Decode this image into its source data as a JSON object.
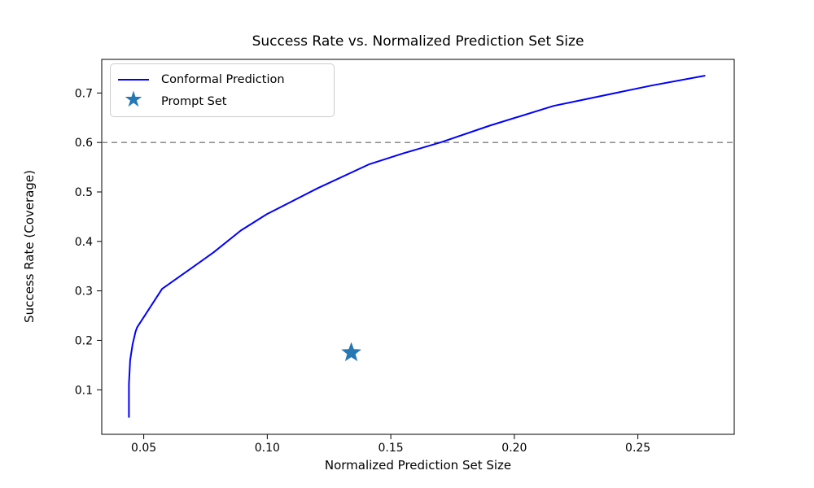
{
  "chart_data": {
    "type": "line",
    "title": "Success Rate vs. Normalized Prediction Set Size",
    "xlabel": "Normalized Prediction Set Size",
    "ylabel": "Success Rate (Coverage)",
    "xlim": [
      0.033,
      0.289
    ],
    "ylim": [
      0.01,
      0.768
    ],
    "grid": false,
    "background": "#ffffff",
    "xticks": {
      "values": [
        0.05,
        0.1,
        0.15,
        0.2,
        0.25
      ],
      "labels": [
        "0.05",
        "0.10",
        "0.15",
        "0.20",
        "0.25"
      ]
    },
    "yticks": {
      "values": [
        0.1,
        0.2,
        0.3,
        0.4,
        0.5,
        0.6,
        0.7
      ],
      "labels": [
        "0.1",
        "0.2",
        "0.3",
        "0.4",
        "0.5",
        "0.6",
        "0.7"
      ]
    },
    "reference_line": {
      "y": 0.6,
      "color": "#7f7f7f",
      "style": "dashed",
      "line_width": 1.4
    },
    "series": [
      {
        "name": "Conformal Prediction",
        "type": "line",
        "color": "#0000ff",
        "line_width": 2,
        "points": [
          [
            0.044,
            0.045
          ],
          [
            0.044,
            0.112
          ],
          [
            0.0445,
            0.16
          ],
          [
            0.0455,
            0.192
          ],
          [
            0.0467,
            0.218
          ],
          [
            0.0473,
            0.226
          ],
          [
            0.0574,
            0.304
          ],
          [
            0.069,
            0.345
          ],
          [
            0.0783,
            0.378
          ],
          [
            0.0893,
            0.422
          ],
          [
            0.0998,
            0.455
          ],
          [
            0.1202,
            0.507
          ],
          [
            0.1413,
            0.556
          ],
          [
            0.155,
            0.578
          ],
          [
            0.1707,
            0.601
          ],
          [
            0.19,
            0.634
          ],
          [
            0.2159,
            0.674
          ],
          [
            0.2555,
            0.715
          ],
          [
            0.277,
            0.735
          ]
        ]
      },
      {
        "name": "Prompt Set",
        "type": "scatter",
        "marker": "star",
        "marker_size": 13,
        "color": "#2578b4",
        "points": [
          [
            0.134,
            0.175
          ]
        ]
      }
    ],
    "legend": {
      "position": "upper-left",
      "entries": [
        {
          "label": "Conformal Prediction",
          "marker": "line",
          "color": "#0000ff"
        },
        {
          "label": "Prompt Set",
          "marker": "star",
          "color": "#2578b4"
        }
      ]
    }
  }
}
